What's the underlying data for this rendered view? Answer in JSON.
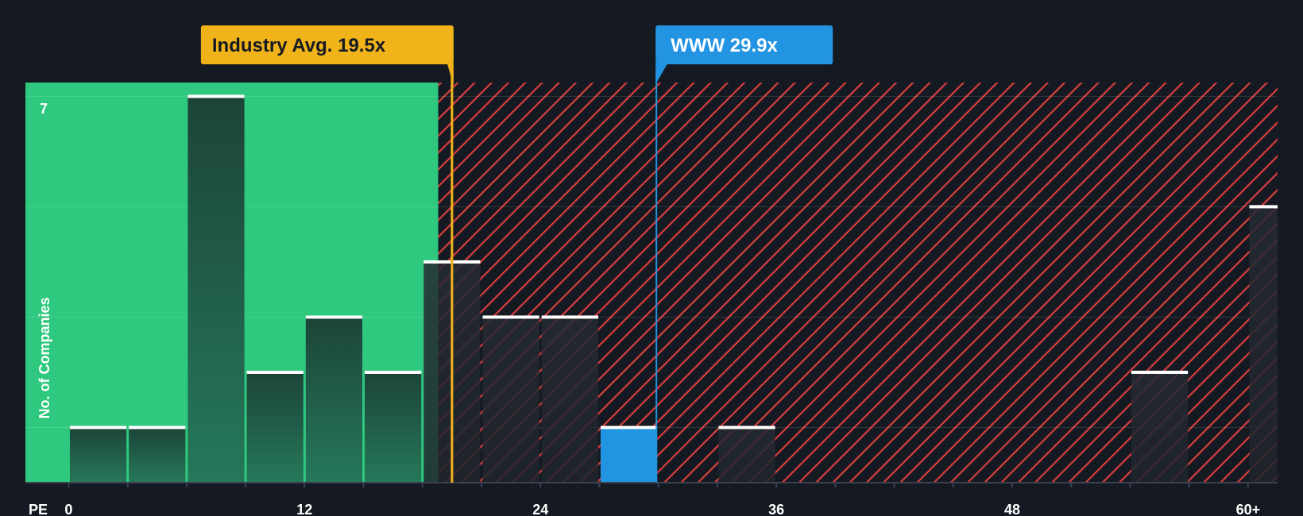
{
  "chart_data": {
    "type": "bar",
    "xlabel": "PE",
    "ylabel": "No. of Companies",
    "x_ticks": [
      "0",
      "12",
      "24",
      "36",
      "48",
      "60+"
    ],
    "x_tick_values": [
      0,
      12,
      24,
      36,
      48,
      60
    ],
    "y_tick_label": "7",
    "xlim": [
      -2.2,
      61.5
    ],
    "ylim": [
      0,
      7.25
    ],
    "bin_width": 3,
    "bars": [
      {
        "x": 0,
        "value": 1
      },
      {
        "x": 3,
        "value": 1
      },
      {
        "x": 6,
        "value": 7
      },
      {
        "x": 9,
        "value": 2
      },
      {
        "x": 12,
        "value": 3
      },
      {
        "x": 15,
        "value": 2
      },
      {
        "x": 18,
        "value": 4
      },
      {
        "x": 21,
        "value": 3
      },
      {
        "x": 24,
        "value": 3
      },
      {
        "x": 27,
        "value": 1,
        "highlight": true
      },
      {
        "x": 33,
        "value": 1
      },
      {
        "x": 54,
        "value": 2
      },
      {
        "x": 60,
        "value": 5,
        "open_ended": true
      }
    ],
    "industry_avg": {
      "label": "Industry Avg. 19.5x",
      "value": 19.5,
      "color": "#f0b31a"
    },
    "company": {
      "label": "WWW 29.9x",
      "value": 29.9,
      "color": "#2394e2"
    },
    "colors": {
      "background": "#151a22",
      "undervalued_zone": "#2ec97e",
      "overvalued_hatch": "#d93d3d",
      "bar_dark": "#1e4c3c",
      "bar_cap": "#ffffff",
      "highlight_bar": "#2394e2"
    },
    "grid": true
  }
}
